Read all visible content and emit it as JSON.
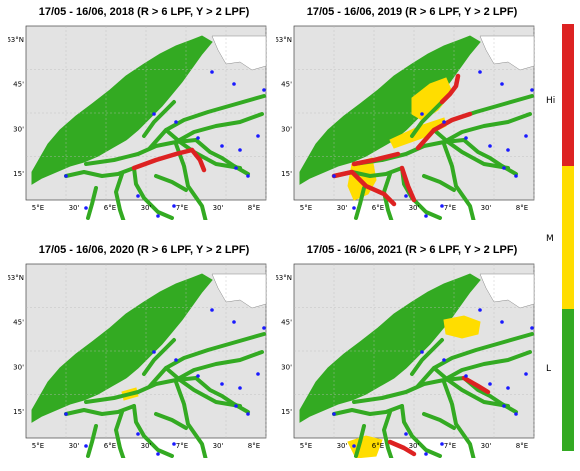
{
  "colors": {
    "sea": "#e3e3e3",
    "land": "#ffffff",
    "low": "#33aa22",
    "medium": "#ffdd00",
    "high": "#dd2222",
    "station": "#1a1aff"
  },
  "panels": [
    {
      "title": "17/05 - 16/06, 2018 (R > 6 LPF, Y > 2 LPF)",
      "year": "2018"
    },
    {
      "title": "17/05 - 16/06, 2019 (R > 6 LPF, Y > 2 LPF)",
      "year": "2019"
    },
    {
      "title": "17/05 - 16/06, 2020 (R > 6 LPF, Y > 2 LPF)",
      "year": "2020"
    },
    {
      "title": "17/05 - 16/06, 2021 (R > 6 LPF, Y > 2 LPF)",
      "year": "2021"
    }
  ],
  "axes": {
    "lon_labels": [
      "5°E",
      "30'",
      "6°E",
      "30'",
      "7°E",
      "30'",
      "8°E"
    ],
    "lat_labels": [
      "63°N",
      "45'",
      "30'",
      "15'"
    ]
  },
  "legend": {
    "labels": [
      "Hi",
      "M",
      "L"
    ]
  }
}
